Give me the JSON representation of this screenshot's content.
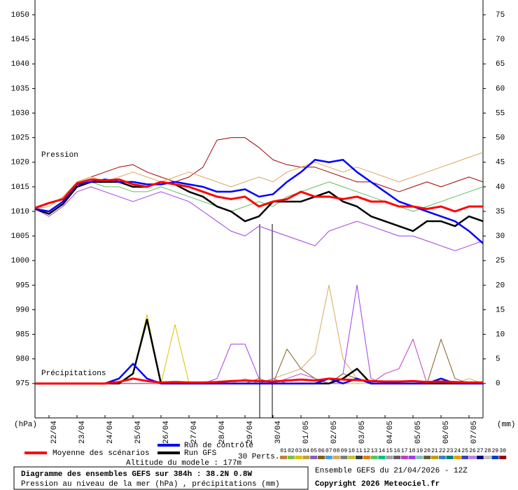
{
  "chart_data": {
    "type": "line",
    "title": "Diagramme des ensembles GEFS sur 384h : 38.2N 0.8W",
    "subtitle": "Pression au niveau de la mer (hPa) , précipitations (mm)",
    "run_label": "Ensemble GEFS du 21/04/2026 - 12Z",
    "copyright": "Copyright 2026 Meteociel.fr",
    "altitude": "Altitude du modele : 177m",
    "perts_label": "30 Perts.",
    "pressure_label": "Pression",
    "precip_label": "Précipitations",
    "y_unit": "(hPa)",
    "y2_unit": "(mm)",
    "x": [
      0,
      12,
      24,
      36,
      48,
      60,
      72,
      84,
      96,
      108,
      120,
      132,
      144,
      156,
      168,
      180,
      192,
      204,
      216,
      228,
      240,
      252,
      264,
      276,
      288,
      300,
      312,
      324,
      336,
      348,
      360,
      372,
      384
    ],
    "xlim": [
      0,
      384
    ],
    "xticks": [
      {
        "value": 12,
        "label": "22/04"
      },
      {
        "value": 36,
        "label": "23/04"
      },
      {
        "value": 60,
        "label": "24/04"
      },
      {
        "value": 84,
        "label": "25/04"
      },
      {
        "value": 108,
        "label": "26/04"
      },
      {
        "value": 132,
        "label": "27/04"
      },
      {
        "value": 156,
        "label": "28/04"
      },
      {
        "value": 180,
        "label": "29/04"
      },
      {
        "value": 204,
        "label": "30/04"
      },
      {
        "value": 228,
        "label": "01/05"
      },
      {
        "value": 252,
        "label": "02/05"
      },
      {
        "value": 276,
        "label": "03/05"
      },
      {
        "value": 300,
        "label": "04/05"
      },
      {
        "value": 324,
        "label": "05/05"
      },
      {
        "value": 348,
        "label": "06/05"
      },
      {
        "value": 372,
        "label": "07/05"
      }
    ],
    "ylim": [
      968,
      1053
    ],
    "yticks": [
      975,
      980,
      985,
      990,
      995,
      1000,
      1005,
      1010,
      1015,
      1020,
      1025,
      1030,
      1035,
      1040,
      1045,
      1050
    ],
    "y2lim": [
      -7,
      78
    ],
    "y2ticks": [
      0,
      5,
      10,
      15,
      20,
      25,
      30,
      35,
      40,
      45,
      50,
      55,
      60,
      65,
      70,
      75
    ],
    "members": [
      {
        "label": "01",
        "color": "#c08040"
      },
      {
        "label": "02",
        "color": "#80c040"
      },
      {
        "label": "03",
        "color": "#e0c000"
      },
      {
        "label": "04",
        "color": "#c0a040"
      },
      {
        "label": "05",
        "color": "#8060c0"
      },
      {
        "label": "06",
        "color": "#806020"
      },
      {
        "label": "07",
        "color": "#40a0e0"
      },
      {
        "label": "08",
        "color": "#d8a860"
      },
      {
        "label": "09",
        "color": "#808080"
      },
      {
        "label": "10",
        "color": "#c0c040"
      },
      {
        "label": "11",
        "color": "#404040"
      },
      {
        "label": "12",
        "color": "#e08000"
      },
      {
        "label": "13",
        "color": "#60c060"
      },
      {
        "label": "14",
        "color": "#00c080"
      },
      {
        "label": "15",
        "color": "#a0a0a0"
      },
      {
        "label": "16",
        "color": "#606060"
      },
      {
        "label": "17",
        "color": "#c040c0"
      },
      {
        "label": "18",
        "color": "#a040e0"
      },
      {
        "label": "19",
        "color": "#80c0c0"
      },
      {
        "label": "20",
        "color": "#606030"
      },
      {
        "label": "21",
        "color": "#c0a000"
      },
      {
        "label": "22",
        "color": "#4080c0"
      },
      {
        "label": "23",
        "color": "#008080"
      },
      {
        "label": "24",
        "color": "#e0a000"
      },
      {
        "label": "25",
        "color": "#4040c0"
      },
      {
        "label": "26",
        "color": "#c080e0"
      },
      {
        "label": "27",
        "color": "#000080"
      },
      {
        "label": "28",
        "color": "#c0c0c0"
      },
      {
        "label": "29",
        "color": "#0040c0"
      },
      {
        "label": "30",
        "color": "#a00000"
      }
    ],
    "series": [
      {
        "name": "30",
        "color": "#a00000",
        "width": 1,
        "values": [
          1010.5,
          1010,
          1012,
          1016,
          1017,
          1018,
          1019,
          1019.5,
          1018,
          1017,
          1016,
          1017,
          1019,
          1024.5,
          1025,
          1025,
          1023,
          1020.5,
          1019.5,
          1019,
          1019,
          1018,
          1017,
          1016,
          1016,
          1015,
          1014,
          1015,
          1016,
          1015,
          1016,
          1017,
          1016
        ]
      },
      {
        "name": "18",
        "color": "#a040e0",
        "width": 1,
        "values": [
          1010.5,
          1009,
          1011,
          1014,
          1015,
          1014,
          1013,
          1012,
          1013,
          1014,
          1013,
          1012,
          1010,
          1008,
          1006,
          1005,
          1007,
          1006,
          1005,
          1004,
          1003,
          1006,
          1007,
          1008,
          1007,
          1006,
          1005,
          1005,
          1004,
          1003,
          1002,
          1003,
          1004
        ]
      },
      {
        "name": "08",
        "color": "#d8a860",
        "width": 1,
        "values": [
          1010.5,
          1011,
          1013,
          1016,
          1017,
          1016,
          1017,
          1018,
          1017,
          1016,
          1017,
          1018,
          1017,
          1016,
          1015,
          1016,
          1017,
          1016,
          1018,
          1019,
          1020,
          1019,
          1018,
          1019,
          1018,
          1017,
          1016,
          1017,
          1018,
          1019,
          1020,
          1021,
          1022
        ]
      },
      {
        "name": "13",
        "color": "#60c060",
        "width": 1,
        "values": [
          1010.5,
          1010,
          1012,
          1015,
          1016,
          1015,
          1015,
          1014,
          1014,
          1015,
          1014,
          1013,
          1012,
          1011,
          1010,
          1011,
          1012,
          1011,
          1013,
          1014,
          1015,
          1016,
          1015,
          1014,
          1013,
          1012,
          1011,
          1010,
          1011,
          1012,
          1013,
          1014,
          1015
        ]
      },
      {
        "name": "Run GFS",
        "color": "#000000",
        "width": 2.5,
        "values": [
          1010.5,
          1009.5,
          1011.5,
          1015,
          1016,
          1016,
          1016,
          1015,
          1015,
          1016,
          1015.5,
          1014,
          1013,
          1011,
          1010,
          1008,
          1009,
          1012,
          1012,
          1012,
          1013,
          1014,
          1012,
          1011,
          1009,
          1008,
          1007,
          1006,
          1008,
          1008,
          1007,
          1009,
          1008
        ]
      },
      {
        "name": "Run de contrôle",
        "color": "#0000ff",
        "width": 2.5,
        "values": [
          1010.5,
          1010,
          1012,
          1015.5,
          1016,
          1016.5,
          1016,
          1016,
          1015.5,
          1015.5,
          1016,
          1015.5,
          1015,
          1014,
          1014,
          1014.5,
          1013,
          1013.5,
          1016,
          1018,
          1020.5,
          1020,
          1020.5,
          1018,
          1016,
          1014,
          1012,
          1011,
          1010,
          1009,
          1008,
          1006,
          1003.5
        ]
      },
      {
        "name": "Moyenne des scénarios",
        "color": "#ff0000",
        "width": 3,
        "values": [
          1010.7,
          1011.7,
          1012.5,
          1015.7,
          1016.5,
          1016.3,
          1016.5,
          1015.5,
          1015,
          1016,
          1015.5,
          1015,
          1014,
          1013,
          1012.5,
          1013,
          1011,
          1012,
          1012.5,
          1014,
          1013,
          1013,
          1012.5,
          1013,
          1012,
          1012,
          1011,
          1011,
          1010.5,
          1011,
          1010,
          1011,
          1011
        ]
      }
    ],
    "precip_series": [
      {
        "name": "03",
        "color": "#e0c000",
        "axis": "y2",
        "width": 1,
        "values": [
          0,
          0,
          0,
          0,
          0,
          0,
          0,
          2,
          14,
          0,
          12,
          0,
          0,
          0,
          0,
          0,
          0,
          0,
          0,
          0,
          0,
          0,
          0,
          0,
          0,
          0,
          0,
          0,
          0,
          0,
          0,
          0,
          0
        ]
      },
      {
        "name": "08",
        "color": "#d8a860",
        "axis": "y2",
        "width": 1,
        "values": [
          0,
          0,
          0,
          0,
          0,
          0,
          0,
          0,
          0,
          0,
          0,
          0,
          0,
          0,
          0,
          1,
          0,
          1,
          2,
          3,
          6,
          20,
          5,
          1,
          0,
          0,
          0,
          0,
          0,
          0,
          0,
          1,
          0
        ]
      },
      {
        "name": "18",
        "color": "#a040e0",
        "axis": "y2",
        "width": 1,
        "values": [
          0,
          0,
          0,
          0,
          0,
          0,
          0,
          0,
          0,
          0,
          0,
          0,
          0,
          1,
          8,
          8,
          1,
          0,
          1,
          2,
          1,
          0,
          2,
          20,
          1,
          0,
          0,
          0,
          0,
          0,
          0,
          0,
          0
        ]
      },
      {
        "name": "06",
        "color": "#806020",
        "axis": "y2",
        "width": 1,
        "values": [
          0,
          0,
          0,
          0,
          0,
          0,
          0,
          0,
          0,
          0,
          0,
          0,
          0,
          0,
          0,
          0,
          1,
          0,
          7,
          3,
          1,
          0,
          2,
          1,
          0,
          0,
          0,
          0,
          0,
          9,
          1,
          0,
          0
        ]
      },
      {
        "name": "17",
        "color": "#c040c0",
        "axis": "y2",
        "width": 1,
        "values": [
          0,
          0,
          0,
          0,
          0,
          0,
          0,
          0,
          0,
          0,
          0,
          0,
          0,
          0,
          0,
          0,
          0,
          1,
          0,
          0,
          0,
          0,
          0,
          1,
          0,
          2,
          3,
          9,
          0,
          0,
          0,
          0,
          0
        ]
      },
      {
        "name": "Run GFS",
        "color": "#000000",
        "axis": "y2",
        "width": 2.5,
        "values": [
          0,
          0,
          0,
          0,
          0,
          0,
          0,
          2,
          13,
          0,
          0,
          0,
          0,
          0,
          0,
          0,
          0,
          0,
          0,
          0,
          0,
          0,
          1,
          3,
          0,
          0,
          0,
          0,
          0,
          0,
          0,
          0,
          0
        ]
      },
      {
        "name": "Run de contrôle",
        "color": "#0000ff",
        "axis": "y2",
        "width": 2.5,
        "values": [
          0,
          0,
          0,
          0,
          0,
          0,
          1,
          4,
          1,
          0,
          0,
          0,
          0,
          0,
          0,
          0,
          0,
          0,
          0,
          0,
          0,
          1,
          0,
          1,
          0,
          0,
          0,
          0,
          0,
          1,
          0,
          0,
          0
        ]
      },
      {
        "name": "Moyenne des scénarios",
        "color": "#ff0000",
        "axis": "y2",
        "width": 3,
        "values": [
          0,
          0,
          0,
          0,
          0,
          0,
          0.3,
          1,
          0.5,
          0.2,
          0.3,
          0.2,
          0.2,
          0.3,
          0.5,
          0.6,
          0.5,
          0.4,
          0.6,
          0.8,
          0.6,
          1,
          0.8,
          0.7,
          0.5,
          0.4,
          0.4,
          0.5,
          0.3,
          0.4,
          0.3,
          0.2,
          0.2
        ]
      }
    ]
  }
}
